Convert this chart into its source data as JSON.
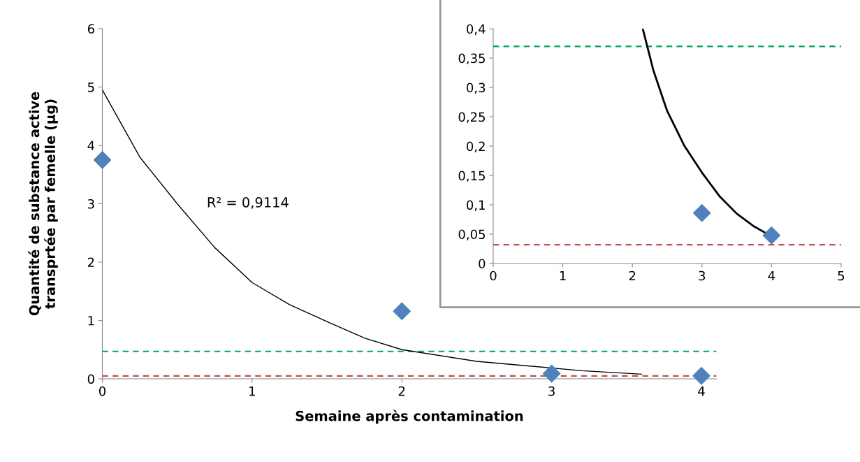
{
  "chart_data": [
    {
      "type": "scatter",
      "xlabel": "Semaine après contamination",
      "ylabel": "Quantité de substance active\ntransprtée par femelle (µg)",
      "xlim": [
        0,
        4.1
      ],
      "ylim": [
        0,
        6
      ],
      "xticks": [
        0,
        1,
        2,
        3,
        4
      ],
      "yticks": [
        0,
        1,
        2,
        3,
        4,
        5,
        6
      ],
      "grid": false,
      "legend": false,
      "marker": "diamond",
      "annotations": [
        "R² = 0,9114"
      ],
      "series": [
        {
          "color": "#4f81bd",
          "x": [
            0,
            2,
            3,
            4
          ],
          "values": [
            3.75,
            1.16,
            0.09,
            0.05
          ]
        },
        {
          "type": "line",
          "color": "#000000",
          "line_style": "solid",
          "marker": "none",
          "x": [
            0,
            0.25,
            0.5,
            0.75,
            1,
            1.25,
            1.5,
            1.75,
            2,
            2.5,
            3.2,
            3.6
          ],
          "values": [
            4.95,
            3.8,
            3.0,
            2.25,
            1.65,
            1.27,
            0.98,
            0.7,
            0.5,
            0.3,
            0.14,
            0.08
          ]
        }
      ],
      "ref_lines": [
        {
          "axis": "y",
          "value": 0.47,
          "color": "#00a651",
          "line_style": "dashed"
        },
        {
          "axis": "y",
          "value": 0.05,
          "color": "#c0504d",
          "line_style": "dashed"
        }
      ]
    },
    {
      "type": "scatter",
      "xlim": [
        0,
        5
      ],
      "ylim": [
        0,
        0.4
      ],
      "xticks": [
        0,
        1,
        2,
        3,
        4,
        5
      ],
      "yticks": [
        0,
        {
          "value": 0.05,
          "label": "0,05"
        },
        {
          "value": 0.1,
          "label": "0,1"
        },
        {
          "value": 0.15,
          "label": "0,15"
        },
        {
          "value": 0.2,
          "label": "0,2"
        },
        {
          "value": 0.25,
          "label": "0,25"
        },
        {
          "value": 0.3,
          "label": "0,3"
        },
        {
          "value": 0.35,
          "label": "0,35"
        },
        {
          "value": 0.4,
          "label": "0,4"
        }
      ],
      "grid": false,
      "legend": false,
      "marker": "diamond",
      "series": [
        {
          "color": "#4f81bd",
          "x": [
            3,
            4
          ],
          "values": [
            0.086,
            0.048
          ]
        },
        {
          "type": "line",
          "color": "#000000",
          "line_style": "solid",
          "marker": "none",
          "x": [
            2.15,
            2.3,
            2.5,
            2.75,
            3,
            3.25,
            3.5,
            3.75,
            3.9
          ],
          "values": [
            0.4,
            0.33,
            0.26,
            0.2,
            0.155,
            0.115,
            0.085,
            0.063,
            0.053
          ]
        }
      ],
      "ref_lines": [
        {
          "axis": "y",
          "value": 0.37,
          "color": "#00a651",
          "line_style": "dashed"
        },
        {
          "axis": "y",
          "value": 0.032,
          "color": "#c0504d",
          "line_style": "dashed"
        }
      ]
    }
  ]
}
